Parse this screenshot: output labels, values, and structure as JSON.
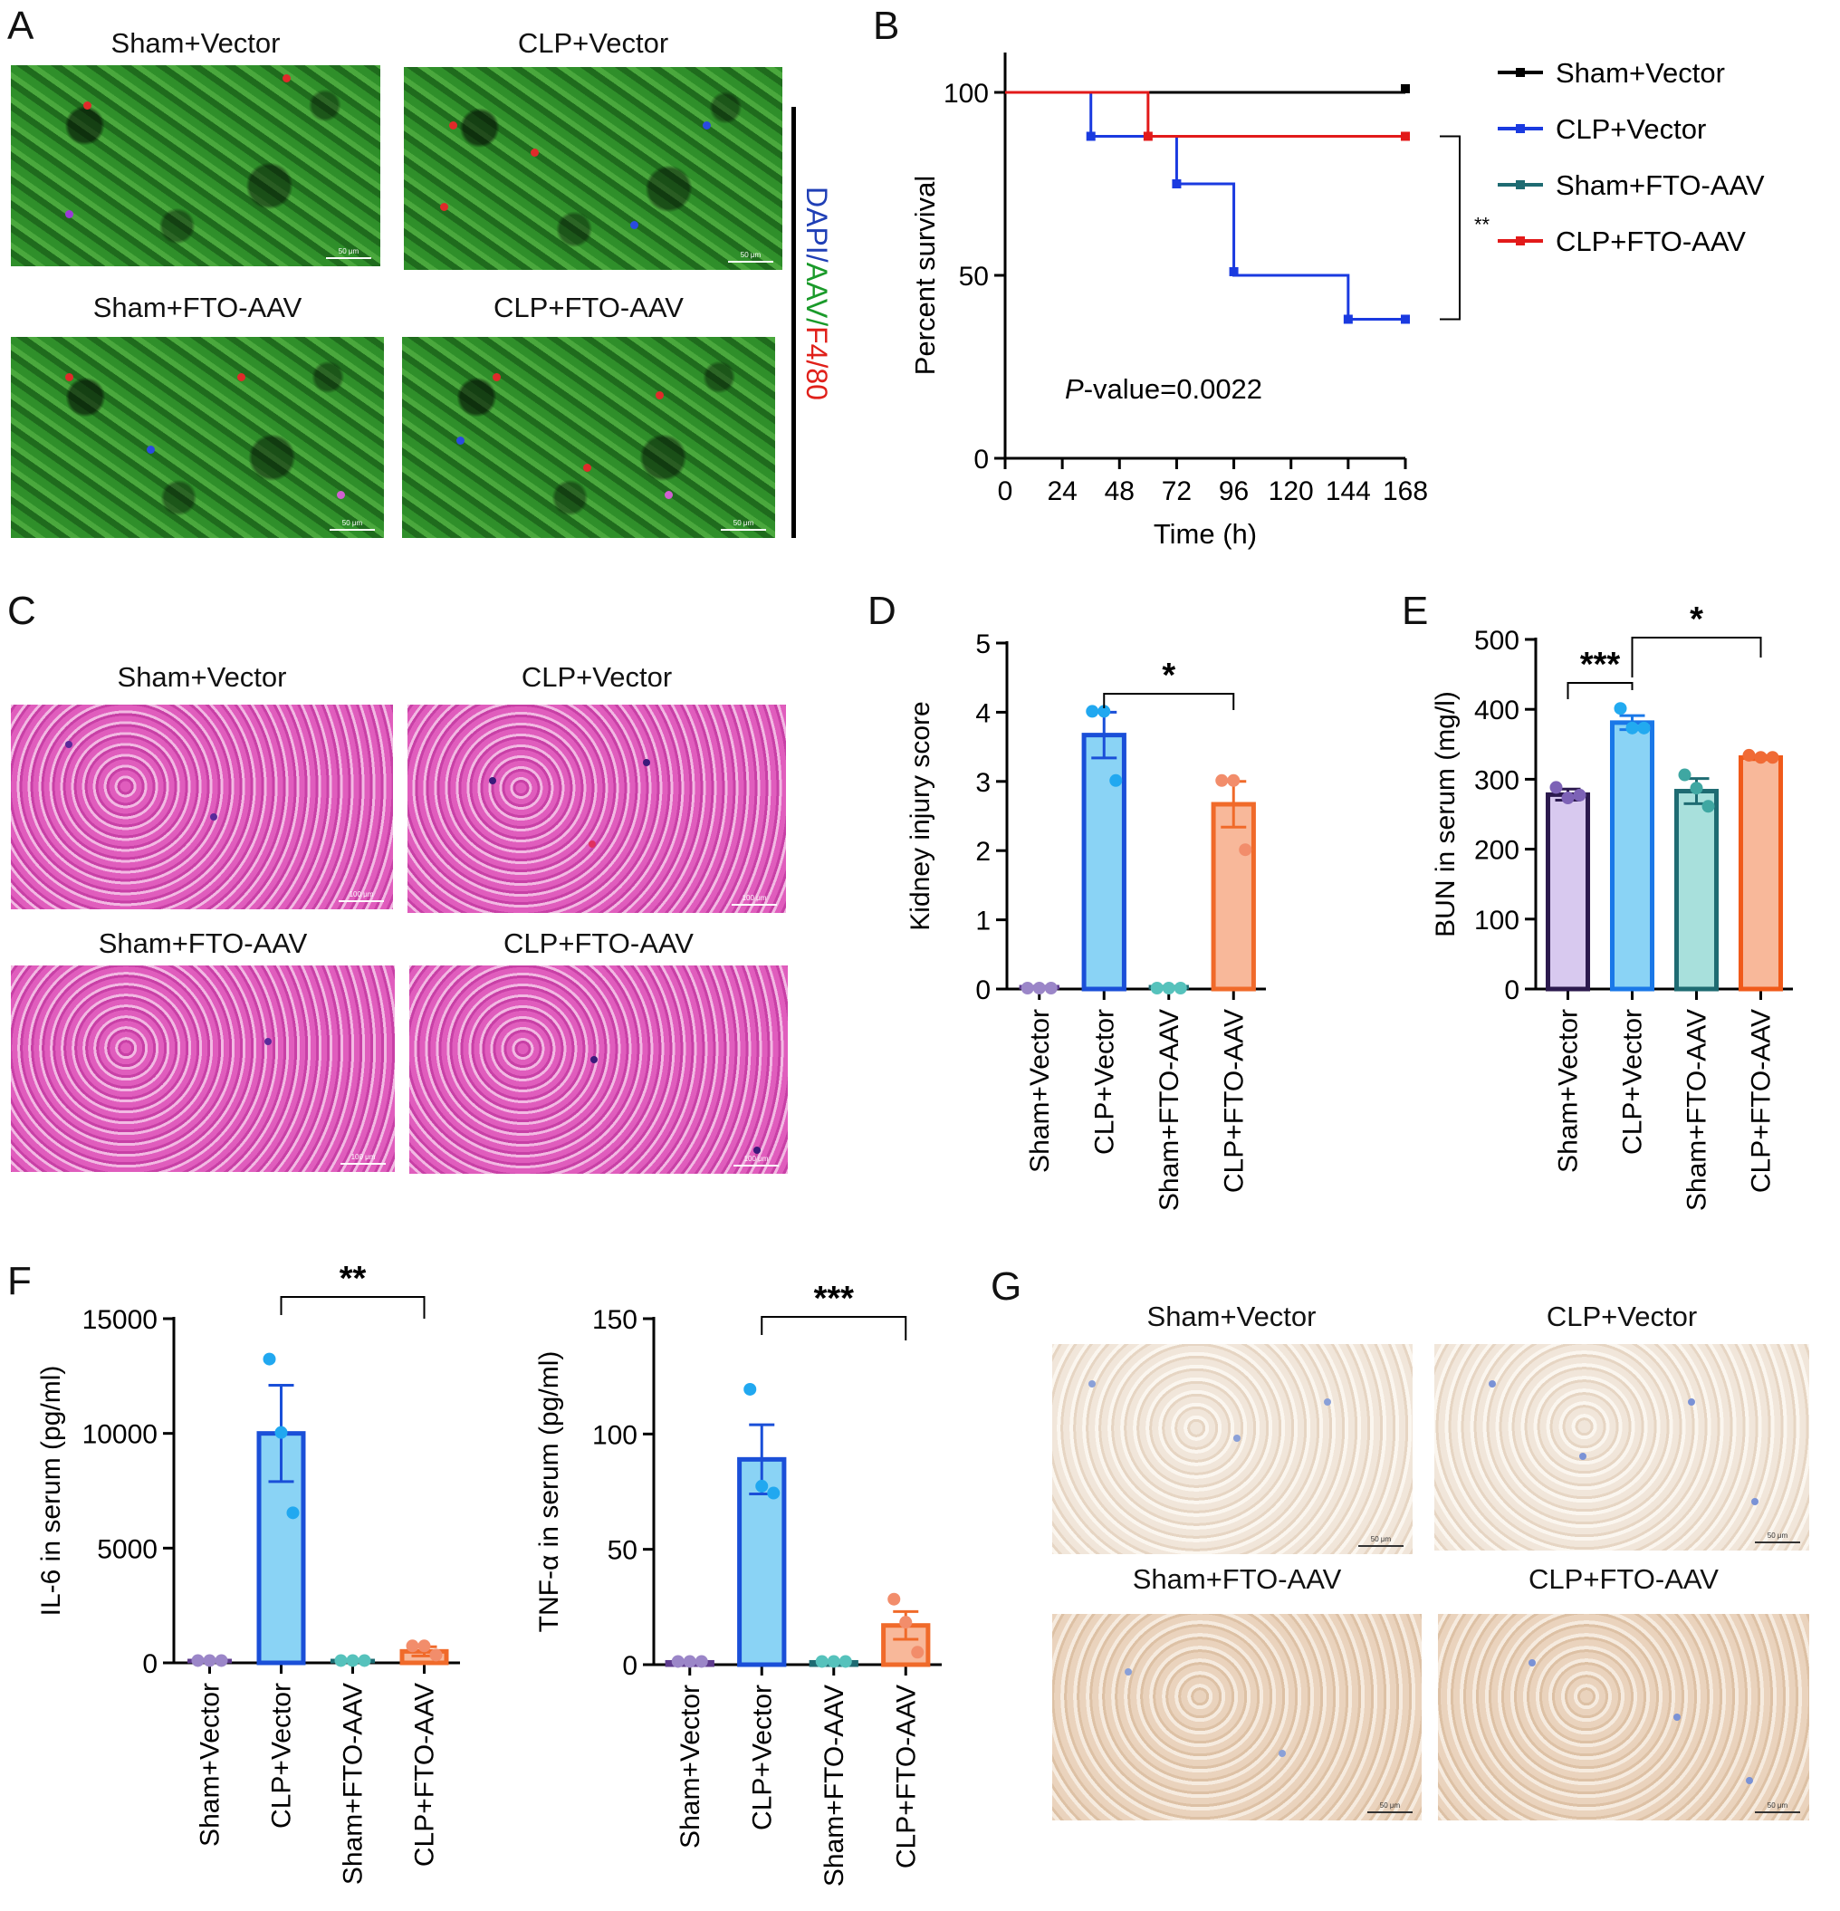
{
  "panels": {
    "A": {
      "letter": "A",
      "titles": [
        "Sham+Vector",
        "CLP+Vector",
        "Sham+FTO-AAV",
        "CLP+FTO-AAV"
      ],
      "scale_text": "50 μm",
      "stain_parts": [
        {
          "text": "DAPI",
          "color": "#1f3fb6"
        },
        {
          "text": "/",
          "color": "#1f3fb6"
        },
        {
          "text": "AAV",
          "color": "#1a9a2a"
        },
        {
          "text": "/",
          "color": "#1a9a2a"
        },
        {
          "text": "F4/80",
          "color": "#e0201a"
        }
      ]
    },
    "C": {
      "letter": "C",
      "titles": [
        "Sham+Vector",
        "CLP+Vector",
        "Sham+FTO-AAV",
        "CLP+FTO-AAV"
      ],
      "scale_text": "100 μm"
    },
    "G": {
      "letter": "G",
      "titles": [
        "Sham+Vector",
        "CLP+Vector",
        "Sham+FTO-AAV",
        "CLP+FTO-AAV"
      ],
      "scale_text": "50 μm"
    }
  },
  "chart_data": [
    {
      "id": "B",
      "letter": "B",
      "type": "line",
      "subtype": "kaplan-meier",
      "xlabel": "Time (h)",
      "ylabel": "Percent survival",
      "xlim": [
        0,
        168
      ],
      "ylim": [
        0,
        100
      ],
      "xticks": [
        "0",
        "24",
        "48",
        "72",
        "96",
        "120",
        "144",
        "168"
      ],
      "yticks": [
        "0",
        "50",
        "100"
      ],
      "annotation": "P-value=0.0022",
      "annotation_italic_part": "P",
      "annotation_rest": "-value=0.0022",
      "significance": "**",
      "series": [
        {
          "name": "Sham+Vector",
          "color": "#000000",
          "steps": [
            [
              0,
              100
            ],
            [
              168,
              100
            ]
          ],
          "censor": [
            [
              168,
              101
            ]
          ]
        },
        {
          "name": "CLP+Vector",
          "color": "#1a3ae0",
          "steps": [
            [
              0,
              100
            ],
            [
              36,
              100
            ],
            [
              36,
              88
            ],
            [
              72,
              88
            ],
            [
              72,
              75
            ],
            [
              96,
              75
            ],
            [
              96,
              50
            ],
            [
              144,
              50
            ],
            [
              144,
              38
            ],
            [
              168,
              38
            ]
          ],
          "censor": [
            [
              36,
              88
            ],
            [
              72,
              75
            ],
            [
              96,
              51
            ],
            [
              144,
              38
            ],
            [
              168,
              38
            ]
          ]
        },
        {
          "name": "Sham+FTO-AAV",
          "color": "#1e6b72",
          "steps": [
            [
              0,
              100
            ],
            [
              168,
              100
            ]
          ],
          "censor": []
        },
        {
          "name": "CLP+FTO-AAV",
          "color": "#e21a1a",
          "steps": [
            [
              0,
              100
            ],
            [
              60,
              100
            ],
            [
              60,
              88
            ],
            [
              168,
              88
            ]
          ],
          "censor": [
            [
              60,
              88
            ],
            [
              168,
              88
            ]
          ]
        }
      ]
    },
    {
      "id": "D",
      "letter": "D",
      "type": "bar",
      "ylabel": "Kidney injury score",
      "ylim": [
        0,
        5
      ],
      "yticks": [
        "0",
        "1",
        "2",
        "3",
        "4",
        "5"
      ],
      "categories": [
        "Sham+Vector",
        "CLP+Vector",
        "Sham+FTO-AAV",
        "CLP+FTO-AAV"
      ],
      "values": [
        0,
        3.67,
        0,
        2.67
      ],
      "errors": [
        0,
        0.33,
        0,
        0.33
      ],
      "points": [
        [
          0,
          0,
          0
        ],
        [
          4,
          4,
          3
        ],
        [
          0,
          0,
          0
        ],
        [
          3,
          3,
          2
        ]
      ],
      "fills": [
        "#d9c6ee",
        "#8ad3f5",
        "#a8e0dc",
        "#f8b89a"
      ],
      "strokes": [
        "#5e3b8e",
        "#1a4fd8",
        "#1e6b72",
        "#f06a2a"
      ],
      "dot_colors": [
        "#9b86c8",
        "#21a8f0",
        "#56c2bc",
        "#f28d6b"
      ],
      "brackets": [
        {
          "from": 1,
          "to": 3,
          "label": "*"
        }
      ]
    },
    {
      "id": "E",
      "letter": "E",
      "type": "bar",
      "ylabel": "BUN in serum (mg/l)",
      "ylim": [
        0,
        500
      ],
      "yticks": [
        "0",
        "100",
        "200",
        "300",
        "400",
        "500"
      ],
      "categories": [
        "Sham+Vector",
        "CLP+Vector",
        "Sham+FTO-AAV",
        "CLP+FTO-AAV"
      ],
      "values": [
        278,
        381,
        283,
        331
      ],
      "errors": [
        8,
        10,
        18,
        3
      ],
      "points": [
        [
          287,
          272,
          276
        ],
        [
          400,
          372,
          372
        ],
        [
          305,
          286,
          260
        ],
        [
          333,
          330,
          330
        ]
      ],
      "fills": [
        "#d8c9ef",
        "#8ad3f5",
        "#a8e0dc",
        "#f8b89a"
      ],
      "strokes": [
        "#2c1a4e",
        "#1a78e8",
        "#1e6b72",
        "#f05a1a"
      ],
      "dot_colors": [
        "#7d62b6",
        "#22aaf0",
        "#3fa7a2",
        "#f06a35"
      ],
      "brackets": [
        {
          "from": 0,
          "to": 1,
          "label": "***"
        },
        {
          "from": 1,
          "to": 3,
          "label": "*"
        }
      ]
    },
    {
      "id": "F1",
      "letter": "F",
      "type": "bar",
      "ylabel": "IL-6 in serum (pg/ml)",
      "ylim": [
        0,
        15000
      ],
      "yticks": [
        "0",
        "5000",
        "10000",
        "15000"
      ],
      "categories": [
        "Sham+Vector",
        "CLP+Vector",
        "Sham+FTO-AAV",
        "CLP+FTO-AAV"
      ],
      "values": [
        60,
        10000,
        60,
        500
      ],
      "errors": [
        0,
        2100,
        0,
        200
      ],
      "points": [
        [
          60,
          60,
          60
        ],
        [
          13200,
          10000,
          6500
        ],
        [
          60,
          60,
          60
        ],
        [
          700,
          700,
          300
        ]
      ],
      "fills": [
        "#d8c9ef",
        "#8ad3f5",
        "#a8e0dc",
        "#f8b89a"
      ],
      "strokes": [
        "#5e3b8e",
        "#1a4fd8",
        "#1e6b72",
        "#f06a2a"
      ],
      "dot_colors": [
        "#9b86c8",
        "#21a8f0",
        "#56c2bc",
        "#f28d6b"
      ],
      "brackets": [
        {
          "from": 1,
          "to": 3,
          "label": "**"
        }
      ]
    },
    {
      "id": "F2",
      "letter": "",
      "type": "bar",
      "ylabel": "TNF-α in serum (pg/ml)",
      "ylim": [
        0,
        150
      ],
      "yticks": [
        "0",
        "50",
        "100",
        "150"
      ],
      "categories": [
        "Sham+Vector",
        "CLP+Vector",
        "Sham+FTO-AAV",
        "CLP+FTO-AAV"
      ],
      "values": [
        1,
        89,
        1,
        17
      ],
      "errors": [
        0,
        15,
        0,
        6
      ],
      "points": [
        [
          1,
          1,
          1
        ],
        [
          119,
          77,
          74
        ],
        [
          1,
          1,
          1
        ],
        [
          28,
          18,
          5
        ]
      ],
      "fills": [
        "#d8c9ef",
        "#8ad3f5",
        "#a8e0dc",
        "#f8b89a"
      ],
      "strokes": [
        "#5e3b8e",
        "#1a4fd8",
        "#1e6b72",
        "#f06a2a"
      ],
      "dot_colors": [
        "#9b86c8",
        "#21a8f0",
        "#56c2bc",
        "#f28d6b"
      ],
      "brackets": [
        {
          "from": 1,
          "to": 3,
          "label": "***"
        }
      ]
    }
  ]
}
